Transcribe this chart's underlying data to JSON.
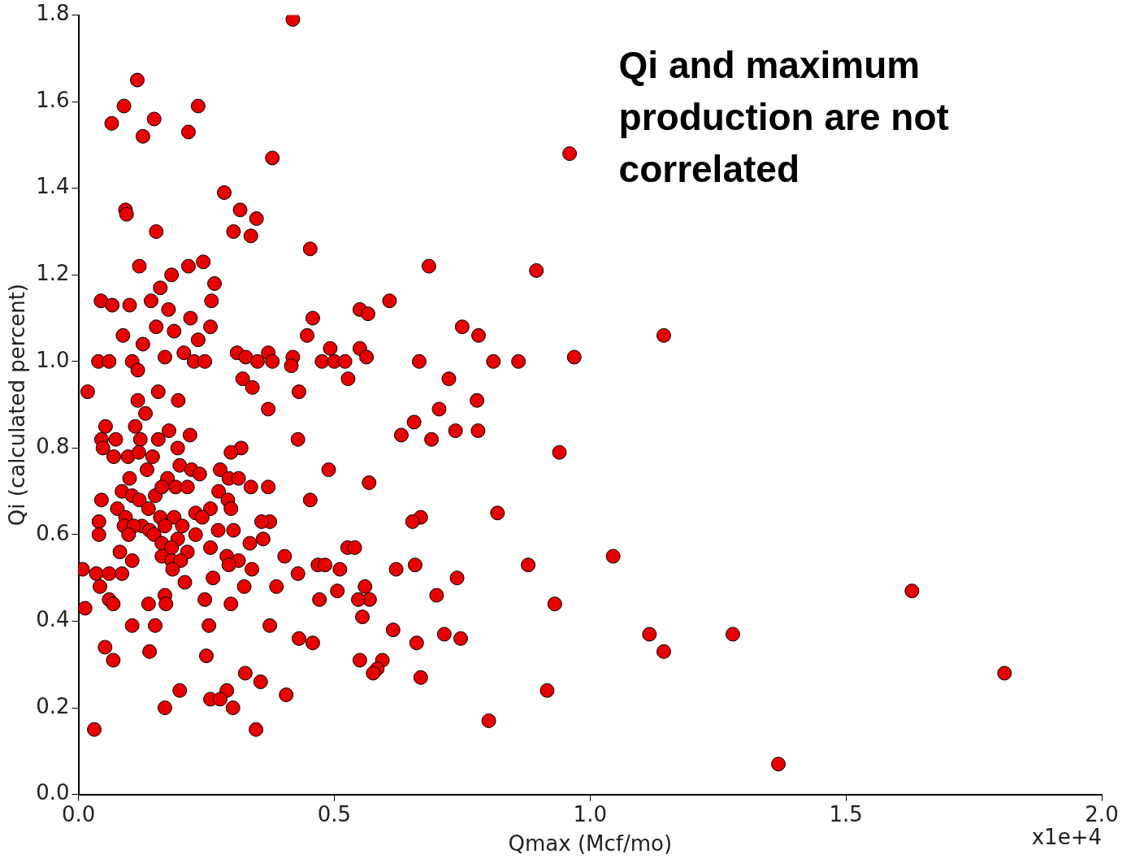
{
  "chart_data": {
    "type": "scatter",
    "xlabel": "Qmax (Mcf/mo)",
    "ylabel": "Qi (calculated percent)",
    "annotations": [
      "Qi and maximum production are not correlated",
      "x1e+4"
    ],
    "xlim": [
      0,
      2
    ],
    "ylim": [
      0,
      1.8
    ],
    "xticks": [
      {
        "value": 0,
        "label": "0.0"
      },
      0.5,
      {
        "value": 1,
        "label": "1.0"
      },
      1.5,
      {
        "value": 2,
        "label": "2.0"
      }
    ],
    "yticks": [
      {
        "value": 0,
        "label": "0.0"
      },
      0.2,
      0.4,
      0.6,
      0.8,
      {
        "value": 1,
        "label": "1.0"
      },
      1.2,
      1.4,
      1.6,
      1.8
    ],
    "grid": false,
    "legend": false,
    "marker": "circle",
    "x": [
      0.419,
      0.115,
      0.089,
      0.234,
      0.065,
      0.148,
      0.126,
      0.215,
      0.96,
      0.379,
      0.092,
      0.094,
      0.285,
      0.316,
      0.348,
      0.303,
      0.337,
      0.152,
      0.453,
      0.685,
      0.895,
      0.119,
      0.215,
      0.244,
      0.266,
      0.182,
      0.16,
      0.044,
      0.066,
      0.1,
      0.142,
      0.26,
      0.176,
      0.219,
      0.458,
      0.55,
      0.566,
      0.608,
      0.75,
      0.782,
      1.144,
      0.152,
      0.258,
      0.087,
      0.447,
      0.126,
      0.187,
      0.234,
      0.039,
      0.06,
      0.105,
      0.169,
      0.206,
      0.226,
      0.247,
      0.31,
      0.327,
      0.35,
      0.371,
      0.379,
      0.419,
      0.476,
      0.5,
      0.521,
      0.492,
      0.55,
      0.563,
      0.666,
      0.811,
      0.86,
      0.969,
      0.116,
      0.416,
      0.527,
      0.724,
      0.321,
      0.34,
      0.431,
      0.018,
      0.156,
      0.195,
      0.116,
      0.779,
      0.705,
      0.371,
      0.131,
      0.656,
      0.053,
      0.111,
      0.177,
      0.737,
      0.781,
      0.631,
      0.429,
      0.69,
      0.045,
      0.073,
      0.121,
      0.156,
      0.218,
      0.318,
      0.94,
      0.194,
      0.298,
      0.048,
      0.069,
      0.097,
      0.118,
      0.145,
      0.198,
      0.221,
      0.237,
      0.277,
      0.294,
      0.313,
      0.489,
      0.134,
      0.174,
      0.1,
      0.337,
      0.371,
      0.568,
      0.045,
      0.076,
      0.085,
      0.105,
      0.119,
      0.15,
      0.163,
      0.19,
      0.213,
      0.274,
      0.292,
      0.453,
      0.298,
      0.258,
      0.229,
      0.242,
      0.137,
      0.092,
      0.16,
      0.187,
      0.374,
      0.669,
      0.653,
      0.819,
      0.04,
      0.089,
      0.124,
      0.108,
      0.139,
      0.169,
      0.203,
      0.273,
      0.303,
      0.358,
      0.098,
      0.148,
      0.04,
      0.163,
      0.194,
      0.229,
      0.361,
      0.335,
      0.182,
      0.258,
      0.526,
      0.54,
      0.081,
      0.163,
      0.213,
      0.29,
      0.403,
      1.045,
      0.182,
      0.2,
      0.105,
      0.313,
      0.658,
      0.879,
      0.294,
      0.468,
      0.482,
      0.511,
      0.621,
      0.339,
      0.008,
      0.035,
      0.06,
      0.085,
      0.184,
      0.429,
      0.74,
      0.263,
      0.387,
      0.56,
      0.042,
      0.06,
      0.208,
      0.506,
      0.7,
      1.629,
      0.137,
      0.068,
      0.169,
      0.247,
      0.298,
      0.471,
      0.569,
      0.547,
      0.931,
      0.013,
      0.171,
      0.555,
      0.324,
      0.105,
      0.15,
      0.255,
      0.374,
      0.615,
      0.715,
      0.747,
      1.116,
      1.279,
      0.431,
      0.458,
      0.661,
      0.052,
      0.139,
      1.144,
      0.068,
      0.25,
      0.55,
      0.594,
      0.584,
      0.576,
      0.669,
      1.81,
      0.326,
      0.356,
      0.29,
      0.198,
      0.406,
      0.916,
      0.258,
      0.277,
      0.302,
      0.169,
      0.802,
      0.031,
      0.347,
      1.368
    ],
    "values": [
      1.79,
      1.65,
      1.59,
      1.59,
      1.55,
      1.56,
      1.52,
      1.53,
      1.48,
      1.47,
      1.35,
      1.34,
      1.39,
      1.35,
      1.33,
      1.3,
      1.29,
      1.3,
      1.26,
      1.22,
      1.21,
      1.22,
      1.22,
      1.23,
      1.18,
      1.2,
      1.17,
      1.14,
      1.13,
      1.13,
      1.14,
      1.14,
      1.12,
      1.1,
      1.1,
      1.12,
      1.11,
      1.14,
      1.08,
      1.06,
      1.06,
      1.08,
      1.08,
      1.06,
      1.06,
      1.04,
      1.07,
      1.05,
      1,
      1,
      1,
      1.01,
      1.02,
      1,
      1,
      1.02,
      1.01,
      1,
      1.02,
      1,
      1.01,
      1,
      1,
      1,
      1.03,
      1.03,
      1.01,
      1,
      1,
      1,
      1.01,
      0.98,
      0.99,
      0.96,
      0.96,
      0.96,
      0.94,
      0.93,
      0.93,
      0.93,
      0.91,
      0.91,
      0.91,
      0.89,
      0.89,
      0.88,
      0.86,
      0.85,
      0.85,
      0.84,
      0.84,
      0.84,
      0.83,
      0.82,
      0.82,
      0.82,
      0.82,
      0.82,
      0.82,
      0.83,
      0.8,
      0.79,
      0.8,
      0.79,
      0.8,
      0.78,
      0.78,
      0.79,
      0.78,
      0.76,
      0.75,
      0.74,
      0.75,
      0.73,
      0.73,
      0.75,
      0.75,
      0.73,
      0.73,
      0.71,
      0.71,
      0.72,
      0.68,
      0.66,
      0.7,
      0.69,
      0.68,
      0.69,
      0.71,
      0.71,
      0.71,
      0.7,
      0.68,
      0.68,
      0.66,
      0.66,
      0.65,
      0.64,
      0.66,
      0.64,
      0.64,
      0.64,
      0.63,
      0.64,
      0.63,
      0.65,
      0.63,
      0.62,
      0.62,
      0.62,
      0.61,
      0.62,
      0.62,
      0.61,
      0.61,
      0.63,
      0.6,
      0.6,
      0.6,
      0.58,
      0.59,
      0.6,
      0.59,
      0.58,
      0.57,
      0.57,
      0.57,
      0.57,
      0.56,
      0.55,
      0.56,
      0.55,
      0.55,
      0.55,
      0.54,
      0.54,
      0.54,
      0.54,
      0.53,
      0.53,
      0.53,
      0.53,
      0.53,
      0.52,
      0.52,
      0.52,
      0.52,
      0.51,
      0.51,
      0.51,
      0.52,
      0.51,
      0.5,
      0.5,
      0.48,
      0.48,
      0.48,
      0.45,
      0.49,
      0.47,
      0.46,
      0.47,
      0.44,
      0.44,
      0.46,
      0.45,
      0.44,
      0.45,
      0.45,
      0.45,
      0.44,
      0.43,
      0.44,
      0.41,
      0.48,
      0.39,
      0.39,
      0.39,
      0.39,
      0.38,
      0.37,
      0.36,
      0.37,
      0.37,
      0.36,
      0.35,
      0.35,
      0.34,
      0.33,
      0.33,
      0.31,
      0.32,
      0.31,
      0.31,
      0.29,
      0.28,
      0.27,
      0.28,
      0.28,
      0.26,
      0.24,
      0.24,
      0.23,
      0.24,
      0.22,
      0.22,
      0.2,
      0.2,
      0.17,
      0.15,
      0.15,
      0.07
    ],
    "color": "#e60000"
  }
}
